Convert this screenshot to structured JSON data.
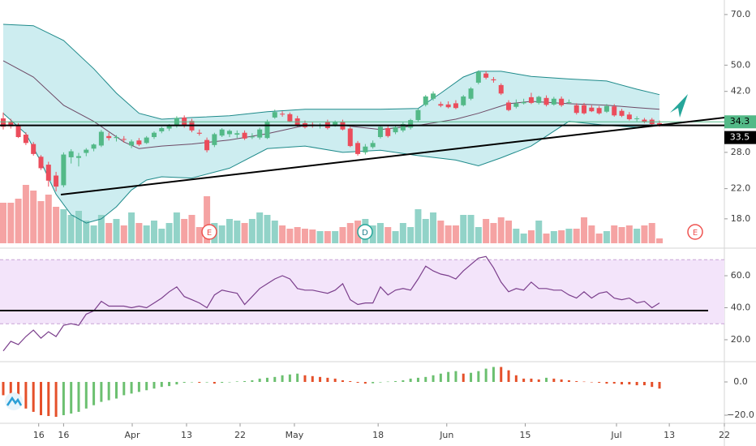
{
  "chart_data": [
    {
      "type": "candlestick",
      "log_scale": true,
      "ylim": [
        15.3,
        77.1
      ],
      "yticks": [
        {
          "value": 70,
          "label": "70.0"
        },
        {
          "value": 50,
          "label": "50.0"
        },
        {
          "value": 42,
          "label": "42.0"
        },
        {
          "value": 28,
          "label": "28.0"
        },
        {
          "value": 22,
          "label": "22.0"
        },
        {
          "value": 18,
          "label": "18.0"
        }
      ],
      "xlim": [
        -0.43,
        95.6
      ],
      "xticks": [
        {
          "value": 4.7,
          "label": "16"
        },
        {
          "value": 8,
          "label": "16"
        },
        {
          "value": 17.1,
          "label": "Apr"
        },
        {
          "value": 24.3,
          "label": "13"
        },
        {
          "value": 31.4,
          "label": "22"
        },
        {
          "value": 38.6,
          "label": "May"
        },
        {
          "value": 49.7,
          "label": "18"
        },
        {
          "value": 58.8,
          "label": "Jun"
        },
        {
          "value": 69.2,
          "label": "15"
        },
        {
          "value": 81.3,
          "label": "Jul"
        },
        {
          "value": 88.3,
          "label": "13"
        },
        {
          "value": 95.6,
          "label": "22"
        }
      ],
      "up_color": "#53b987",
      "down_color": "#eb4d5c",
      "candles": [
        [
          35.1,
          36.5,
          32.6,
          33.2
        ],
        [
          34.4,
          35.0,
          32.8,
          33.3
        ],
        [
          33.5,
          34.0,
          30.8,
          31.0
        ],
        [
          31.5,
          32.0,
          29.4,
          29.8
        ],
        [
          29.6,
          30.0,
          27.4,
          27.7
        ],
        [
          27.2,
          27.5,
          24.9,
          25.2
        ],
        [
          25.8,
          26.3,
          22.3,
          23.2
        ],
        [
          24.0,
          24.6,
          21.6,
          22.3
        ],
        [
          22.5,
          28.0,
          22.2,
          27.6
        ],
        [
          27.1,
          28.6,
          26.0,
          28.2
        ],
        [
          27.0,
          27.9,
          25.5,
          27.3
        ],
        [
          27.9,
          28.8,
          27.3,
          28.5
        ],
        [
          28.7,
          29.7,
          28.2,
          29.5
        ],
        [
          29.3,
          32.5,
          29.0,
          32.1
        ],
        [
          31.2,
          31.9,
          30.3,
          30.8
        ],
        [
          30.8,
          31.4,
          30.1,
          31.0
        ],
        [
          30.6,
          31.2,
          29.9,
          30.5
        ],
        [
          29.3,
          30.5,
          28.8,
          30.1
        ],
        [
          30.3,
          30.8,
          29.2,
          29.5
        ],
        [
          29.8,
          31.2,
          29.6,
          30.9
        ],
        [
          31.0,
          32.2,
          30.6,
          31.9
        ],
        [
          32.2,
          33.2,
          31.8,
          32.9
        ],
        [
          32.8,
          33.8,
          32.3,
          33.6
        ],
        [
          33.4,
          35.6,
          33.0,
          35.2
        ],
        [
          35.3,
          35.8,
          33.0,
          33.5
        ],
        [
          34.5,
          35.0,
          32.0,
          32.4
        ],
        [
          31.9,
          32.6,
          31.3,
          31.7
        ],
        [
          30.4,
          30.9,
          28.0,
          28.4
        ],
        [
          29.4,
          31.9,
          29.0,
          31.6
        ],
        [
          31.3,
          32.9,
          31.0,
          32.6
        ],
        [
          31.6,
          32.6,
          31.0,
          32.3
        ],
        [
          31.5,
          32.4,
          30.8,
          31.8
        ],
        [
          31.9,
          32.4,
          30.4,
          30.7
        ],
        [
          31.0,
          31.8,
          30.6,
          31.1
        ],
        [
          30.9,
          33.0,
          30.5,
          32.6
        ],
        [
          30.8,
          34.8,
          30.6,
          34.4
        ],
        [
          35.3,
          37.2,
          35.0,
          36.6
        ],
        [
          36.2,
          36.8,
          35.5,
          36.0
        ],
        [
          36.1,
          36.5,
          34.2,
          34.4
        ],
        [
          35.1,
          35.7,
          33.2,
          33.5
        ],
        [
          34.0,
          34.6,
          32.8,
          33.1
        ],
        [
          33.7,
          34.2,
          33.0,
          33.4
        ],
        [
          33.4,
          34.0,
          32.8,
          33.6
        ],
        [
          34.3,
          34.8,
          32.6,
          32.9
        ],
        [
          33.5,
          34.6,
          33.2,
          34.3
        ],
        [
          34.3,
          34.8,
          32.4,
          32.6
        ],
        [
          32.8,
          33.2,
          29.0,
          29.2
        ],
        [
          29.8,
          30.2,
          27.4,
          27.7
        ],
        [
          28.0,
          29.6,
          27.6,
          29.1
        ],
        [
          29.0,
          30.3,
          28.7,
          29.8
        ],
        [
          31.0,
          33.6,
          30.7,
          33.2
        ],
        [
          32.9,
          33.5,
          30.9,
          31.2
        ],
        [
          32.0,
          33.4,
          31.6,
          33.1
        ],
        [
          32.4,
          34.2,
          32.0,
          33.8
        ],
        [
          33.0,
          35.0,
          32.6,
          34.7
        ],
        [
          34.7,
          37.5,
          34.3,
          37.1
        ],
        [
          38.4,
          41.0,
          38.0,
          40.6
        ],
        [
          40.0,
          42.0,
          39.5,
          41.4
        ],
        [
          38.6,
          39.2,
          37.8,
          38.2
        ],
        [
          38.5,
          39.3,
          37.5,
          37.8
        ],
        [
          38.8,
          39.6,
          37.3,
          37.6
        ],
        [
          38.3,
          41.0,
          38.0,
          40.6
        ],
        [
          40.0,
          43.2,
          39.6,
          42.8
        ],
        [
          44.5,
          48.3,
          44.0,
          47.8
        ],
        [
          47.3,
          48.0,
          45.5,
          46.0
        ],
        [
          45.5,
          46.2,
          44.5,
          45.2
        ],
        [
          43.8,
          44.3,
          41.0,
          41.4
        ],
        [
          39.0,
          39.6,
          36.8,
          37.1
        ],
        [
          37.9,
          39.8,
          37.5,
          38.8
        ],
        [
          38.8,
          40.0,
          38.5,
          39.1
        ],
        [
          40.4,
          41.6,
          38.6,
          38.9
        ],
        [
          38.9,
          40.8,
          38.5,
          40.5
        ],
        [
          40.2,
          40.9,
          38.0,
          38.4
        ],
        [
          38.5,
          40.5,
          38.2,
          40.0
        ],
        [
          40.0,
          40.6,
          37.9,
          38.3
        ],
        [
          39.0,
          39.8,
          38.6,
          39.1
        ],
        [
          38.3,
          38.8,
          36.0,
          36.4
        ],
        [
          38.3,
          38.9,
          36.0,
          36.3
        ],
        [
          37.7,
          38.3,
          36.6,
          36.8
        ],
        [
          37.6,
          38.1,
          36.0,
          36.3
        ],
        [
          36.7,
          38.6,
          36.4,
          38.1
        ],
        [
          38.0,
          38.6,
          35.5,
          35.8
        ],
        [
          36.9,
          37.4,
          35.4,
          35.7
        ],
        [
          36.0,
          36.6,
          34.6,
          34.9
        ],
        [
          35.0,
          35.6,
          34.4,
          35.1
        ],
        [
          34.8,
          35.2,
          34.0,
          34.3
        ],
        [
          34.8,
          35.2,
          33.5,
          33.8
        ],
        [
          34.0,
          34.6,
          33.2,
          33.5
        ]
      ],
      "bollinger": {
        "line_color": "#1e8a8a",
        "fill_color": "#cdedf0",
        "basis_color": "#6e4a66",
        "upper": {
          "x": [
            0,
            4,
            8,
            12,
            15,
            18,
            21,
            25,
            30,
            35,
            40,
            45,
            50,
            55,
            58,
            61,
            63,
            66,
            70,
            75,
            80,
            84,
            87
          ],
          "values": [
            65.6,
            65.0,
            58.9,
            48.8,
            41.5,
            36.3,
            34.9,
            35.3,
            35.7,
            36.7,
            37.3,
            37.3,
            37.3,
            37.5,
            41.5,
            46.2,
            48.0,
            48.0,
            46.4,
            45.6,
            45.0,
            42.6,
            41.1
          ]
        },
        "lower": {
          "x": [
            0,
            3,
            5,
            7,
            9,
            11,
            13,
            15,
            17,
            19,
            21,
            25,
            30,
            35,
            40,
            45,
            50,
            55,
            60,
            63,
            66,
            70,
            75,
            80,
            84,
            87
          ],
          "values": [
            36.3,
            31.7,
            26.3,
            21.2,
            18.5,
            17.5,
            18.0,
            19.5,
            21.8,
            23.3,
            23.8,
            23.6,
            25.2,
            28.7,
            29.2,
            28.0,
            28.4,
            27.4,
            26.6,
            25.6,
            27.0,
            29.2,
            34.4,
            33.5,
            33.1,
            33.6
          ]
        },
        "basis": {
          "x": [
            0,
            4,
            8,
            12,
            16,
            18,
            21,
            25,
            30,
            35,
            40,
            45,
            50,
            55,
            60,
            63,
            67,
            70,
            75,
            80,
            84,
            87
          ],
          "values": [
            51.5,
            46.2,
            38.3,
            34.4,
            30.0,
            28.7,
            29.2,
            29.6,
            30.4,
            31.7,
            33.5,
            33.5,
            32.6,
            33.5,
            34.9,
            36.3,
            38.7,
            39.3,
            38.7,
            38.3,
            37.7,
            37.3
          ]
        }
      },
      "volume": {
        "ylim": [
          0,
          100
        ],
        "up_color": "#92d3c8",
        "down_color": "#f5a3a3",
        "values": [
          50,
          50,
          55,
          72,
          65,
          52,
          60,
          45,
          42,
          35,
          40,
          28,
          22,
          35,
          25,
          30,
          22,
          38,
          25,
          22,
          28,
          18,
          25,
          38,
          30,
          35,
          20,
          58,
          25,
          22,
          30,
          28,
          25,
          30,
          38,
          35,
          28,
          22,
          18,
          20,
          18,
          17,
          15,
          15,
          15,
          20,
          25,
          28,
          30,
          22,
          25,
          20,
          15,
          25,
          20,
          42,
          30,
          38,
          28,
          22,
          22,
          35,
          35,
          20,
          30,
          25,
          32,
          28,
          18,
          12,
          16,
          28,
          12,
          15,
          16,
          18,
          18,
          32,
          22,
          12,
          15,
          22,
          20,
          22,
          18,
          22,
          25,
          6
        ]
      },
      "last_price": 33.5,
      "marker_price": 34.3,
      "events": [
        "E",
        "D",
        "E"
      ]
    },
    {
      "type": "line",
      "color": "#7b3f8c",
      "fill_color": "#f3e4fa",
      "band_color": "#c7a3d6",
      "bands": [
        30,
        70
      ],
      "ylim": [
        6.8,
        74.2
      ],
      "yticks": [
        {
          "value": 60,
          "label": "60.0"
        },
        {
          "value": 40,
          "label": "40.0"
        },
        {
          "value": 20,
          "label": "20.0"
        }
      ],
      "values": [
        13,
        19,
        17,
        22,
        26,
        21,
        25,
        22,
        29,
        30,
        29,
        36,
        38,
        44,
        41,
        41,
        41,
        40,
        41,
        40,
        43,
        46,
        50,
        53,
        47,
        45,
        43,
        40,
        48,
        51,
        50,
        49,
        42,
        47,
        52,
        55,
        58,
        60,
        58,
        52,
        51,
        51,
        50,
        49,
        51,
        55,
        45,
        42,
        43,
        43,
        53,
        48,
        51,
        52,
        51,
        58,
        66,
        63,
        61,
        60,
        58,
        63,
        67,
        71,
        72,
        65,
        56,
        50,
        52,
        51,
        56,
        52,
        52,
        51,
        51,
        48,
        46,
        50,
        46,
        49,
        50,
        46,
        45,
        46,
        43,
        44,
        40,
        43
      ]
    },
    {
      "type": "bar",
      "up_color": "#6cc070",
      "down_color": "#e5502a",
      "ylim": [
        -23.9,
        11.7
      ],
      "yticks": [
        {
          "value": 0,
          "label": "0.0"
        },
        {
          "value": -20,
          "label": "−20.0"
        }
      ],
      "values": [
        -8,
        -11,
        -13,
        -16,
        -18,
        -20,
        -20.5,
        -21,
        -20,
        -19,
        -18,
        -16,
        -14,
        -12,
        -11,
        -10,
        -8,
        -7,
        -6,
        -5,
        -4,
        -3,
        -2.5,
        -1.5,
        -0.5,
        0,
        -0.5,
        -0.3,
        -1,
        -0.5,
        0,
        0.3,
        0.5,
        1,
        2,
        2.5,
        3,
        4,
        4.5,
        5,
        4,
        3.5,
        3,
        2.5,
        2,
        1,
        0.5,
        -0.5,
        -1,
        -0.8,
        -0.3,
        0.2,
        0.5,
        1,
        2,
        2.5,
        3,
        4,
        5,
        6,
        6.5,
        5,
        5.5,
        6.5,
        8,
        9,
        9,
        7,
        4,
        2,
        2,
        1.5,
        2.5,
        2,
        1.5,
        1,
        0.5,
        0.2,
        -0.2,
        -0.5,
        -1,
        -1,
        -1.5,
        -1.5,
        -2,
        -2,
        -3,
        -4
      ]
    }
  ]
}
